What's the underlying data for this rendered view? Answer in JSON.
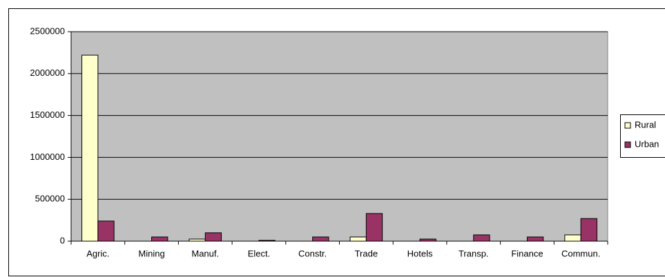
{
  "chart_data": {
    "type": "bar",
    "categories": [
      "Agric.",
      "Mining",
      "Manuf.",
      "Elect.",
      "Constr.",
      "Trade",
      "Hotels",
      "Transp.",
      "Finance",
      "Commun."
    ],
    "series": [
      {
        "name": "Rural",
        "color": "#ffffcc",
        "values": [
          2220000,
          0,
          25000,
          0,
          0,
          50000,
          0,
          0,
          0,
          75000
        ]
      },
      {
        "name": "Urban",
        "color": "#993366",
        "values": [
          240000,
          50000,
          100000,
          10000,
          50000,
          330000,
          25000,
          75000,
          50000,
          270000
        ]
      }
    ],
    "ylim": [
      0,
      2500000
    ],
    "yticks": [
      0,
      500000,
      1000000,
      1500000,
      2000000,
      2500000
    ],
    "grid": true,
    "legend": "right"
  }
}
